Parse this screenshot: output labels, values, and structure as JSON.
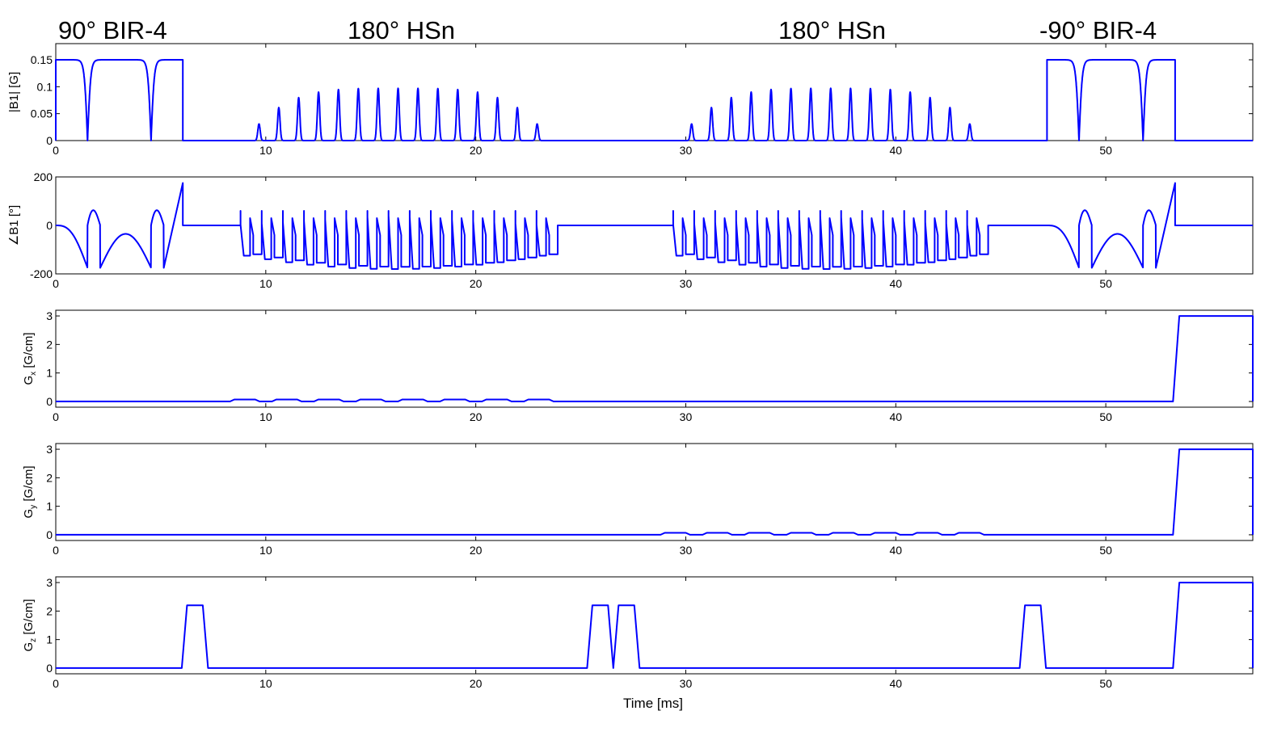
{
  "figure": {
    "pulse_titles": [
      "90° BIR-4",
      "180° HSn",
      "180° HSn",
      "-90° BIR-4"
    ],
    "xlabel": "Time [ms]"
  },
  "chart_data": [
    {
      "type": "line",
      "title": "",
      "xlabel": "",
      "ylabel": "|B1| [G]",
      "xlim": [
        0,
        57
      ],
      "ylim": [
        0,
        0.18
      ],
      "xticks": [
        0,
        10,
        20,
        30,
        40,
        50
      ],
      "yticks": [
        0,
        0.05,
        0.1,
        0.15
      ],
      "ytick_labels": [
        "0",
        "0.05",
        "0.1",
        "0.15"
      ],
      "grid": false,
      "color": "#0000ff",
      "segments": [
        {
          "kind": "bir4",
          "t0": 0,
          "t1": 6.05,
          "amp": 0.15
        },
        {
          "kind": "hsn",
          "t0": 9.2,
          "t1": 23.4,
          "n": 15,
          "peak": 0.097
        },
        {
          "kind": "hsn",
          "t0": 29.8,
          "t1": 44.0,
          "n": 15,
          "peak": 0.097
        },
        {
          "kind": "bir4",
          "t0": 47.2,
          "t1": 53.3,
          "amp": 0.15
        }
      ]
    },
    {
      "type": "line",
      "title": "",
      "xlabel": "",
      "ylabel": "∠B1 [°]",
      "xlim": [
        0,
        57
      ],
      "ylim": [
        -200,
        200
      ],
      "xticks": [
        0,
        10,
        20,
        30,
        40,
        50
      ],
      "yticks": [
        -200,
        0,
        200
      ],
      "ytick_labels": [
        "-200",
        "0",
        "200"
      ],
      "grid": false,
      "color": "#0000ff",
      "segments": [
        {
          "kind": "bir4",
          "t0": 0,
          "t1": 6.05
        },
        {
          "kind": "hsn",
          "t0": 8.8,
          "t1": 23.9,
          "n": 15
        },
        {
          "kind": "hsn",
          "t0": 29.4,
          "t1": 44.4,
          "n": 15
        },
        {
          "kind": "bir4",
          "t0": 47.2,
          "t1": 53.3
        }
      ]
    },
    {
      "type": "line",
      "title": "",
      "xlabel": "",
      "ylabel": "Gx [G/cm]",
      "ylabel_main": "G",
      "ylabel_sub": "x",
      "ylabel_unit": " [G/cm]",
      "xlim": [
        0,
        57
      ],
      "ylim": [
        -0.2,
        3.2
      ],
      "xticks": [
        0,
        10,
        20,
        30,
        40,
        50
      ],
      "yticks": [
        0,
        1,
        2,
        3
      ],
      "ytick_labels": [
        "0",
        "1",
        "2",
        "3"
      ],
      "grid": false,
      "color": "#0000ff",
      "x": [
        0,
        8.3,
        8.5,
        9.5,
        9.7,
        10.3,
        10.5,
        11.5,
        11.7,
        12.3,
        12.5,
        13.5,
        13.7,
        14.3,
        14.5,
        15.5,
        15.7,
        16.3,
        16.5,
        17.5,
        17.7,
        18.3,
        18.5,
        19.5,
        19.7,
        20.3,
        20.5,
        21.5,
        21.7,
        22.3,
        22.5,
        23.5,
        23.7,
        24.3,
        24.5,
        53.2,
        53.5,
        57.3,
        57.5
      ],
      "y": [
        0,
        0,
        0.07,
        0.07,
        0,
        0,
        0.07,
        0.07,
        0,
        0,
        0.07,
        0.07,
        0,
        0,
        0.07,
        0.07,
        0,
        0,
        0.07,
        0.07,
        0,
        0,
        0.07,
        0.07,
        0,
        0,
        0.07,
        0.07,
        0,
        0,
        0.07,
        0.07,
        0,
        0,
        0,
        0,
        3.0,
        3.0,
        0
      ]
    },
    {
      "type": "line",
      "title": "",
      "xlabel": "",
      "ylabel": "Gy [G/cm]",
      "ylabel_main": "G",
      "ylabel_sub": "y",
      "ylabel_unit": " [G/cm]",
      "xlim": [
        0,
        57
      ],
      "ylim": [
        -0.2,
        3.2
      ],
      "xticks": [
        0,
        10,
        20,
        30,
        40,
        50
      ],
      "yticks": [
        0,
        1,
        2,
        3
      ],
      "ytick_labels": [
        "0",
        "1",
        "2",
        "3"
      ],
      "grid": false,
      "color": "#0000ff",
      "x": [
        0,
        28.8,
        29.0,
        30.0,
        30.2,
        30.8,
        31.0,
        32.0,
        32.2,
        32.8,
        33.0,
        34.0,
        34.2,
        34.8,
        35.0,
        36.0,
        36.2,
        36.8,
        37.0,
        38.0,
        38.2,
        38.8,
        39.0,
        40.0,
        40.2,
        40.8,
        41.0,
        42.0,
        42.2,
        42.8,
        43.0,
        44.0,
        44.2,
        44.8,
        45.0,
        53.2,
        53.5,
        57.3,
        57.5
      ],
      "y": [
        0,
        0,
        0.07,
        0.07,
        0,
        0,
        0.07,
        0.07,
        0,
        0,
        0.07,
        0.07,
        0,
        0,
        0.07,
        0.07,
        0,
        0,
        0.07,
        0.07,
        0,
        0,
        0.07,
        0.07,
        0,
        0,
        0.07,
        0.07,
        0,
        0,
        0.07,
        0.07,
        0,
        0,
        0,
        0,
        3.0,
        3.0,
        0
      ]
    },
    {
      "type": "line",
      "title": "",
      "xlabel": "Time [ms]",
      "ylabel": "Gz [G/cm]",
      "ylabel_main": "G",
      "ylabel_sub": "z",
      "ylabel_unit": " [G/cm]",
      "xlim": [
        0,
        57
      ],
      "ylim": [
        -0.2,
        3.2
      ],
      "xticks": [
        0,
        10,
        20,
        30,
        40,
        50
      ],
      "yticks": [
        0,
        1,
        2,
        3
      ],
      "ytick_labels": [
        "0",
        "1",
        "2",
        "3"
      ],
      "grid": false,
      "color": "#0000ff",
      "x": [
        0,
        6.0,
        6.25,
        7.0,
        7.25,
        25.3,
        25.55,
        26.3,
        26.55,
        26.8,
        27.55,
        27.8,
        45.9,
        46.15,
        46.9,
        47.15,
        53.2,
        53.5,
        57.3,
        57.5
      ],
      "y": [
        0,
        0,
        2.2,
        2.2,
        0,
        0,
        2.2,
        2.2,
        0,
        2.2,
        2.2,
        0,
        0,
        2.2,
        2.2,
        0,
        0,
        3.0,
        3.0,
        0
      ]
    }
  ]
}
